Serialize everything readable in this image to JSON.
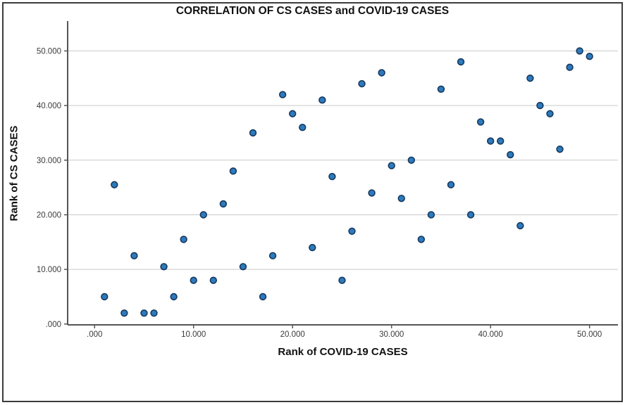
{
  "window": {
    "background": "#ffffff",
    "border_color": "#3c3c3c"
  },
  "chart_data": {
    "type": "scatter",
    "title": "CORRELATION OF CS CASES and COVID-19 CASES",
    "xlabel": "Rank of COVID-19 CASES",
    "ylabel": "Rank of CS CASES",
    "xlim": [
      -2.72,
      52.87
    ],
    "ylim": [
      -0.15,
      55.46
    ],
    "grid": "horizontal-gridlines-only",
    "legend": "none",
    "xticks": [
      {
        "value": 0,
        "label": ".000"
      },
      {
        "value": 10,
        "label": "10.000"
      },
      {
        "value": 20,
        "label": "20.000"
      },
      {
        "value": 30,
        "label": "30.000"
      },
      {
        "value": 40,
        "label": "40.000"
      },
      {
        "value": 50,
        "label": "50.000"
      }
    ],
    "yticks": [
      {
        "value": 0,
        "label": ".000"
      },
      {
        "value": 10,
        "label": "10.000"
      },
      {
        "value": 20,
        "label": "20.000"
      },
      {
        "value": 30,
        "label": "30.000"
      },
      {
        "value": 40,
        "label": "40.000"
      },
      {
        "value": 50,
        "label": "50.000"
      }
    ],
    "points": [
      [
        1,
        5
      ],
      [
        2,
        25.5
      ],
      [
        3,
        2
      ],
      [
        4,
        12.5
      ],
      [
        5,
        2
      ],
      [
        6,
        2
      ],
      [
        7,
        10.5
      ],
      [
        8,
        5
      ],
      [
        9,
        15.5
      ],
      [
        10,
        8
      ],
      [
        11,
        20
      ],
      [
        12,
        8
      ],
      [
        13,
        22
      ],
      [
        14,
        28
      ],
      [
        15,
        10.5
      ],
      [
        16,
        35
      ],
      [
        17,
        5
      ],
      [
        18,
        12.5
      ],
      [
        19,
        42
      ],
      [
        20,
        38.5
      ],
      [
        21,
        36
      ],
      [
        22,
        14
      ],
      [
        23,
        41
      ],
      [
        24,
        27
      ],
      [
        25,
        8
      ],
      [
        26,
        17
      ],
      [
        27,
        44
      ],
      [
        28,
        24
      ],
      [
        29,
        46
      ],
      [
        30,
        29
      ],
      [
        31,
        23
      ],
      [
        32,
        30
      ],
      [
        33,
        15.5
      ],
      [
        34,
        20
      ],
      [
        35,
        43
      ],
      [
        36,
        25.5
      ],
      [
        37,
        48
      ],
      [
        38,
        20
      ],
      [
        39,
        37
      ],
      [
        40,
        33.5
      ],
      [
        41,
        33.5
      ],
      [
        42,
        31
      ],
      [
        43,
        18
      ],
      [
        44,
        45
      ],
      [
        45,
        40
      ],
      [
        46,
        38.5
      ],
      [
        47,
        32
      ],
      [
        48,
        47
      ],
      [
        49,
        50
      ],
      [
        50,
        49
      ]
    ],
    "colors": {
      "dot_fill": "#2d7abc",
      "dot_stroke": "#16395f",
      "gridline": "#c9c9c9",
      "axis_line": "#555555",
      "tick_text": "#3a3a3a"
    }
  }
}
